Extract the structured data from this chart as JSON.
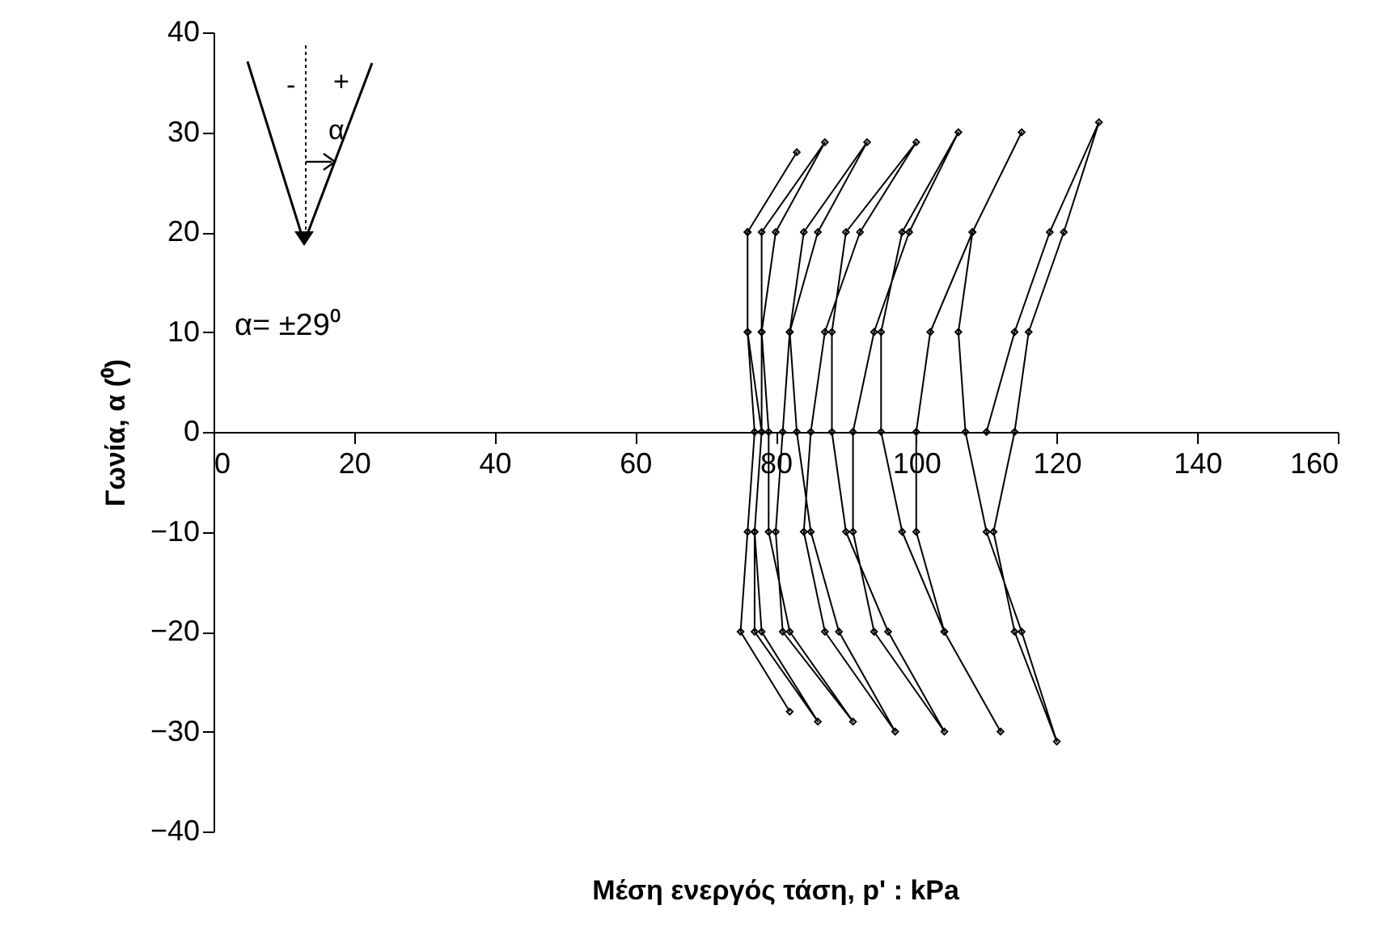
{
  "chart_data": {
    "type": "line",
    "xlabel": "Μέση ενεργός τάση, p' : kPa",
    "ylabel": "Γωνία, α (⁰)",
    "annotations": [
      "-",
      "+",
      "α",
      "α= ±29⁰"
    ],
    "xlim": [
      0,
      160
    ],
    "xticks": [
      0,
      20,
      40,
      60,
      80,
      100,
      120,
      140,
      160
    ],
    "ylim": [
      -40,
      40
    ],
    "yticks": [
      -40,
      -30,
      -20,
      -10,
      0,
      10,
      20,
      30,
      40
    ],
    "grid": false,
    "legend": false,
    "marker": "diamond",
    "line_style": "solid",
    "series": [
      {
        "color": "#000000",
        "x": [
          110,
          114,
          119,
          126,
          121,
          116,
          114,
          111,
          114,
          120,
          115,
          110,
          107,
          106,
          108,
          115,
          108,
          102,
          100,
          100,
          104,
          112,
          104,
          98,
          95,
          95,
          98,
          106,
          99,
          94,
          91,
          91,
          94,
          104,
          96,
          90,
          88,
          88,
          90,
          100,
          92,
          87,
          85,
          84,
          87,
          97,
          89,
          85,
          83,
          82,
          84,
          93,
          86,
          82,
          81,
          80,
          81,
          91,
          82,
          79,
          79,
          78,
          78,
          87,
          80,
          78,
          78,
          77,
          77,
          86,
          78,
          77,
          78,
          76,
          76,
          83,
          76,
          76,
          77,
          76,
          75,
          82
        ],
        "values": [
          0,
          10,
          20,
          31,
          20,
          10,
          0,
          -10,
          -20,
          -31,
          -20,
          -10,
          0,
          10,
          20,
          30,
          20,
          10,
          0,
          -10,
          -20,
          -30,
          -20,
          -10,
          0,
          10,
          20,
          30,
          20,
          10,
          0,
          -10,
          -20,
          -30,
          -20,
          -10,
          0,
          10,
          20,
          29,
          20,
          10,
          0,
          -10,
          -20,
          -30,
          -20,
          -10,
          0,
          10,
          20,
          29,
          20,
          10,
          0,
          -10,
          -20,
          -29,
          -20,
          -10,
          0,
          10,
          20,
          29,
          20,
          10,
          0,
          -10,
          -20,
          -29,
          -20,
          -10,
          0,
          10,
          20,
          28,
          20,
          10,
          0,
          -10,
          -20,
          -28
        ]
      }
    ]
  }
}
